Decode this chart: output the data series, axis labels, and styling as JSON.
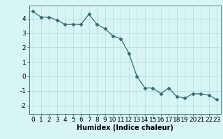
{
  "x": [
    0,
    1,
    2,
    3,
    4,
    5,
    6,
    7,
    8,
    9,
    10,
    11,
    12,
    13,
    14,
    15,
    16,
    17,
    18,
    19,
    20,
    21,
    22,
    23
  ],
  "y": [
    4.5,
    4.1,
    4.1,
    3.9,
    3.6,
    3.6,
    3.6,
    4.3,
    3.6,
    3.3,
    2.8,
    2.6,
    1.6,
    0.0,
    -0.8,
    -0.8,
    -1.2,
    -0.8,
    -1.4,
    -1.5,
    -1.2,
    -1.2,
    -1.3,
    -1.6
  ],
  "line_color": "#2d6e6e",
  "marker": "D",
  "marker_size": 2.5,
  "background_color": "#d8f5f5",
  "grid_color": "#b8dede",
  "xlabel": "Humidex (Indice chaleur)",
  "xlim": [
    -0.5,
    23.5
  ],
  "ylim": [
    -2.6,
    4.9
  ],
  "yticks": [
    -2,
    -1,
    0,
    1,
    2,
    3,
    4
  ],
  "xticks": [
    0,
    1,
    2,
    3,
    4,
    5,
    6,
    7,
    8,
    9,
    10,
    11,
    12,
    13,
    14,
    15,
    16,
    17,
    18,
    19,
    20,
    21,
    22,
    23
  ],
  "xlabel_fontsize": 7,
  "tick_fontsize": 6.5
}
